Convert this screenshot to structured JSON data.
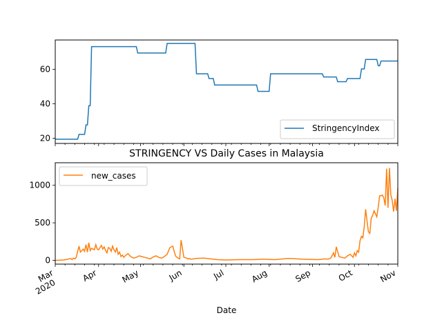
{
  "chart_data": [
    {
      "type": "line",
      "title": "",
      "ylim": [
        17,
        77
      ],
      "yticks": [
        20,
        40,
        60
      ],
      "legend_position": "lower-right",
      "grid": false,
      "series": [
        {
          "name": "StringencyIndex",
          "color": "#1f77b4",
          "x": [
            "2020-03-01",
            "2020-03-17",
            "2020-03-18",
            "2020-03-22",
            "2020-03-23",
            "2020-03-24",
            "2020-03-25",
            "2020-03-26",
            "2020-03-27",
            "2020-04-28",
            "2020-04-29",
            "2020-05-19",
            "2020-05-20",
            "2020-06-09",
            "2020-06-10",
            "2020-06-18",
            "2020-06-19",
            "2020-06-22",
            "2020-06-23",
            "2020-07-23",
            "2020-07-24",
            "2020-08-01",
            "2020-08-02",
            "2020-09-08",
            "2020-09-09",
            "2020-09-18",
            "2020-09-19",
            "2020-09-25",
            "2020-09-26",
            "2020-10-05",
            "2020-10-06",
            "2020-10-08",
            "2020-10-09",
            "2020-10-17",
            "2020-10-18",
            "2020-10-19",
            "2020-10-20",
            "2020-10-23",
            "2020-10-24",
            "2020-11-01"
          ],
          "y": [
            19.44,
            19.44,
            22.22,
            22.22,
            27.78,
            27.78,
            38.89,
            38.89,
            73.15,
            73.15,
            69.44,
            69.44,
            75.0,
            75.0,
            57.41,
            57.41,
            54.63,
            54.63,
            50.93,
            50.93,
            47.22,
            47.22,
            57.41,
            57.41,
            55.56,
            55.56,
            52.78,
            52.78,
            54.63,
            54.63,
            60.19,
            60.19,
            65.74,
            65.74,
            62.04,
            62.04,
            64.81,
            64.81,
            64.81,
            64.81
          ]
        }
      ]
    },
    {
      "type": "line",
      "title": "STRINGENCY VS Daily Cases in Malaysia",
      "xlabel": "Date",
      "ylim": [
        -50,
        1300
      ],
      "yticks": [
        0,
        500,
        1000
      ],
      "legend_position": "upper-left",
      "grid": false,
      "x_major_ticks": [
        {
          "date": "2020-03-01",
          "label": "Mar",
          "sublabel": "2020"
        },
        {
          "date": "2020-04-01",
          "label": "Apr",
          "sublabel": ""
        },
        {
          "date": "2020-05-01",
          "label": "May",
          "sublabel": ""
        },
        {
          "date": "2020-06-01",
          "label": "Jun",
          "sublabel": ""
        },
        {
          "date": "2020-07-01",
          "label": "Jul",
          "sublabel": ""
        },
        {
          "date": "2020-08-01",
          "label": "Aug",
          "sublabel": ""
        },
        {
          "date": "2020-09-01",
          "label": "Sep",
          "sublabel": ""
        },
        {
          "date": "2020-10-01",
          "label": "Oct",
          "sublabel": ""
        },
        {
          "date": "2020-11-01",
          "label": "Nov",
          "sublabel": ""
        }
      ],
      "x_domain": [
        "2020-03-01",
        "2020-11-01"
      ],
      "series": [
        {
          "name": "new_cases",
          "color": "#ff7f0e",
          "x": [
            "2020-03-01",
            "2020-03-07",
            "2020-03-10",
            "2020-03-12",
            "2020-03-13",
            "2020-03-14",
            "2020-03-15",
            "2020-03-16",
            "2020-03-17",
            "2020-03-18",
            "2020-03-19",
            "2020-03-20",
            "2020-03-21",
            "2020-03-22",
            "2020-03-23",
            "2020-03-24",
            "2020-03-25",
            "2020-03-26",
            "2020-03-27",
            "2020-03-28",
            "2020-03-29",
            "2020-03-30",
            "2020-03-31",
            "2020-04-01",
            "2020-04-02",
            "2020-04-03",
            "2020-04-04",
            "2020-04-05",
            "2020-04-06",
            "2020-04-07",
            "2020-04-08",
            "2020-04-09",
            "2020-04-10",
            "2020-04-11",
            "2020-04-12",
            "2020-04-13",
            "2020-04-14",
            "2020-04-15",
            "2020-04-16",
            "2020-04-17",
            "2020-04-18",
            "2020-04-19",
            "2020-04-20",
            "2020-04-22",
            "2020-04-24",
            "2020-04-26",
            "2020-04-28",
            "2020-04-30",
            "2020-05-02",
            "2020-05-04",
            "2020-05-06",
            "2020-05-08",
            "2020-05-10",
            "2020-05-12",
            "2020-05-14",
            "2020-05-16",
            "2020-05-18",
            "2020-05-20",
            "2020-05-22",
            "2020-05-24",
            "2020-05-26",
            "2020-05-27",
            "2020-05-28",
            "2020-05-29",
            "2020-05-30",
            "2020-06-01",
            "2020-06-03",
            "2020-06-04",
            "2020-06-05",
            "2020-06-06",
            "2020-06-08",
            "2020-06-10",
            "2020-06-15",
            "2020-06-20",
            "2020-06-25",
            "2020-07-01",
            "2020-07-10",
            "2020-07-20",
            "2020-07-28",
            "2020-08-05",
            "2020-08-15",
            "2020-08-25",
            "2020-09-05",
            "2020-09-10",
            "2020-09-12",
            "2020-09-14",
            "2020-09-15",
            "2020-09-16",
            "2020-09-17",
            "2020-09-18",
            "2020-09-20",
            "2020-09-22",
            "2020-09-24",
            "2020-09-26",
            "2020-09-28",
            "2020-09-30",
            "2020-10-01",
            "2020-10-02",
            "2020-10-03",
            "2020-10-04",
            "2020-10-05",
            "2020-10-06",
            "2020-10-07",
            "2020-10-08",
            "2020-10-09",
            "2020-10-10",
            "2020-10-11",
            "2020-10-12",
            "2020-10-13",
            "2020-10-14",
            "2020-10-15",
            "2020-10-16",
            "2020-10-17",
            "2020-10-18",
            "2020-10-19",
            "2020-10-20",
            "2020-10-21",
            "2020-10-22",
            "2020-10-23",
            "2020-10-24",
            "2020-10-25",
            "2020-10-26",
            "2020-10-27",
            "2020-10-28",
            "2020-10-29",
            "2020-10-30",
            "2020-10-31",
            "2020-11-01"
          ],
          "y": [
            0,
            5,
            15,
            25,
            10,
            30,
            20,
            40,
            120,
            190,
            110,
            130,
            150,
            120,
            210,
            110,
            235,
            130,
            160,
            150,
            140,
            210,
            150,
            140,
            170,
            200,
            150,
            180,
            130,
            100,
            170,
            160,
            120,
            190,
            140,
            110,
            170,
            80,
            110,
            50,
            70,
            40,
            60,
            90,
            50,
            30,
            40,
            60,
            50,
            40,
            30,
            20,
            45,
            60,
            40,
            30,
            50,
            80,
            170,
            190,
            60,
            40,
            30,
            20,
            270,
            40,
            30,
            20,
            25,
            15,
            20,
            25,
            30,
            20,
            10,
            5,
            10,
            10,
            15,
            10,
            25,
            15,
            10,
            20,
            15,
            30,
            60,
            100,
            40,
            180,
            50,
            40,
            30,
            60,
            80,
            40,
            100,
            60,
            130,
            110,
            260,
            320,
            300,
            450,
            680,
            520,
            380,
            360,
            560,
            600,
            660,
            620,
            580,
            710,
            860,
            860,
            870,
            830,
            730,
            1220,
            700,
            1230,
            870,
            800,
            650,
            820,
            660,
            960
          ]
        }
      ]
    }
  ]
}
